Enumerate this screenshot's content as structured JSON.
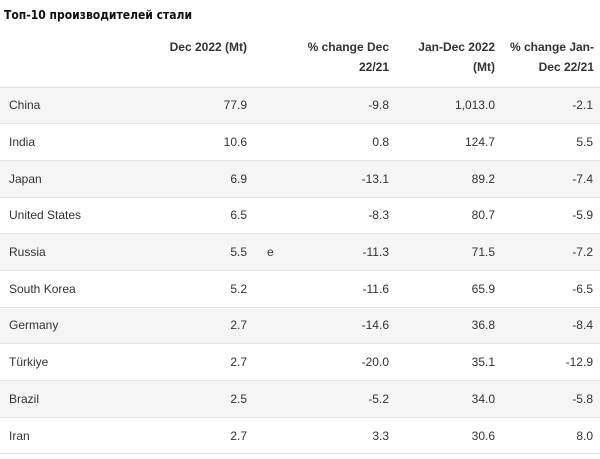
{
  "title": "Топ-10 производителей стали",
  "columns": [
    "",
    "Dec 2022 (Mt)",
    "",
    "% change Dec 22/21",
    "Jan-Dec 2022 (Mt)",
    "% change Jan-Dec 22/21"
  ],
  "rows": [
    {
      "country": "China",
      "dec": "77.9",
      "flag": "",
      "dec_change": "-9.8",
      "ytd": "1,013.0",
      "ytd_change": "-2.1"
    },
    {
      "country": "India",
      "dec": "10.6",
      "flag": "",
      "dec_change": "0.8",
      "ytd": "124.7",
      "ytd_change": "5.5"
    },
    {
      "country": "Japan",
      "dec": "6.9",
      "flag": "",
      "dec_change": "-13.1",
      "ytd": "89.2",
      "ytd_change": "-7.4"
    },
    {
      "country": "United States",
      "dec": "6.5",
      "flag": "",
      "dec_change": "-8.3",
      "ytd": "80.7",
      "ytd_change": "-5.9"
    },
    {
      "country": "Russia",
      "dec": "5.5",
      "flag": "e",
      "dec_change": "-11.3",
      "ytd": "71.5",
      "ytd_change": "-7.2"
    },
    {
      "country": "South Korea",
      "dec": "5.2",
      "flag": "",
      "dec_change": "-11.6",
      "ytd": "65.9",
      "ytd_change": "-6.5"
    },
    {
      "country": "Germany",
      "dec": "2.7",
      "flag": "",
      "dec_change": "-14.6",
      "ytd": "36.8",
      "ytd_change": "-8.4"
    },
    {
      "country": "Türkiye",
      "dec": "2.7",
      "flag": "",
      "dec_change": "-20.0",
      "ytd": "35.1",
      "ytd_change": "-12.9"
    },
    {
      "country": "Brazil",
      "dec": "2.5",
      "flag": "",
      "dec_change": "-5.2",
      "ytd": "34.0",
      "ytd_change": "-5.8"
    },
    {
      "country": "Iran",
      "dec": "2.7",
      "flag": "",
      "dec_change": "3.3",
      "ytd": "30.6",
      "ytd_change": "8.0"
    }
  ]
}
